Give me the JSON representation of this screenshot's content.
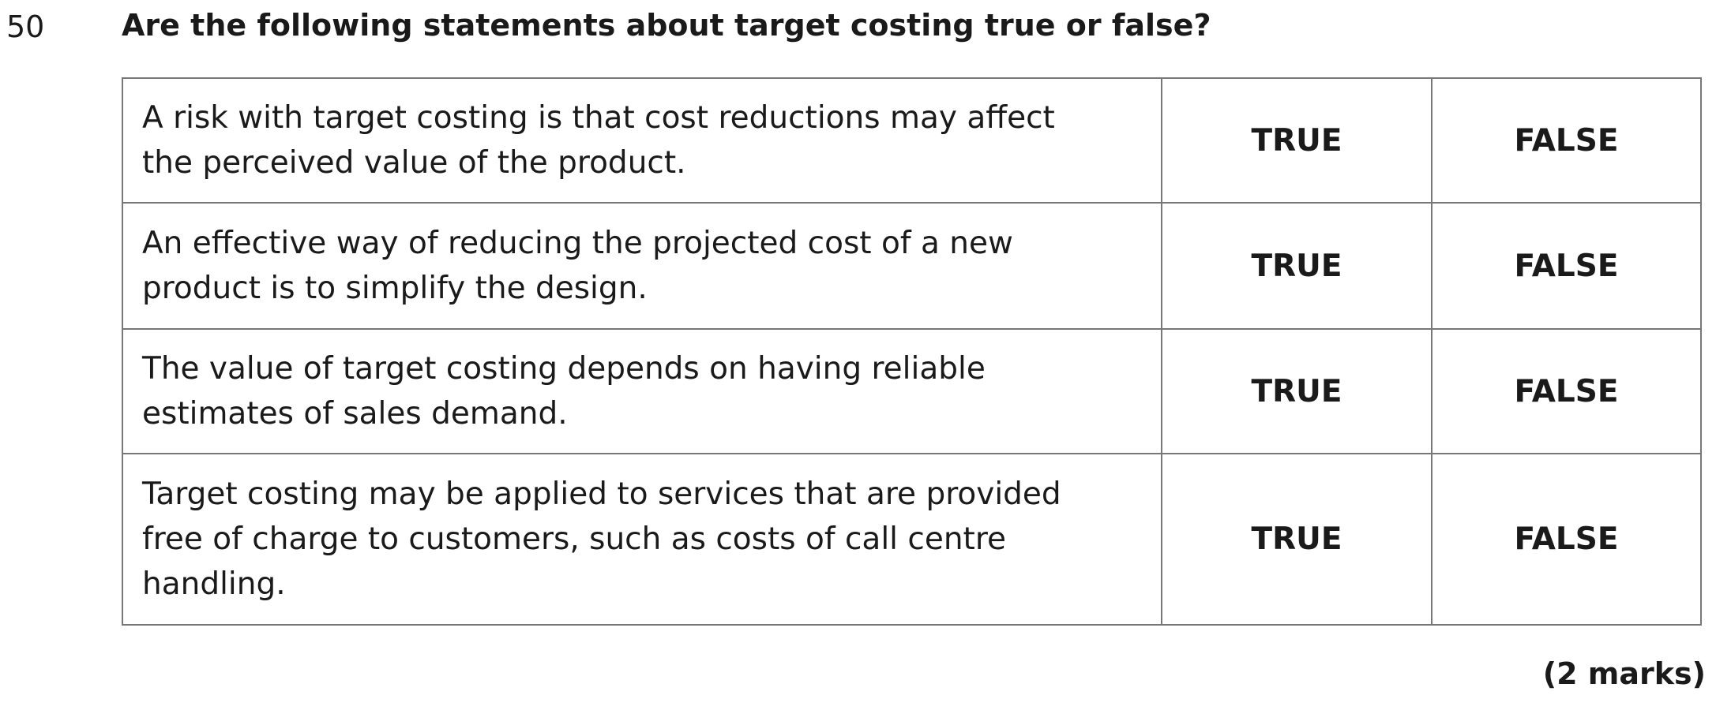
{
  "question": {
    "number": "50",
    "text": "Are the following statements about target costing true or false?"
  },
  "table": {
    "rows": [
      {
        "statement": "A risk with target costing is that cost reductions may affect the perceived value of the product.",
        "options": [
          "TRUE",
          "FALSE"
        ]
      },
      {
        "statement": "An effective way of reducing the projected cost of a new product is to simplify the design.",
        "options": [
          "TRUE",
          "FALSE"
        ]
      },
      {
        "statement": "The value of target costing depends on having reliable estimates of sales demand.",
        "options": [
          "TRUE",
          "FALSE"
        ]
      },
      {
        "statement": "Target costing may be applied to services that are provided free of charge to customers, such as costs of call centre handling.",
        "options": [
          "TRUE",
          "FALSE"
        ]
      }
    ]
  },
  "marks": "(2 marks)"
}
